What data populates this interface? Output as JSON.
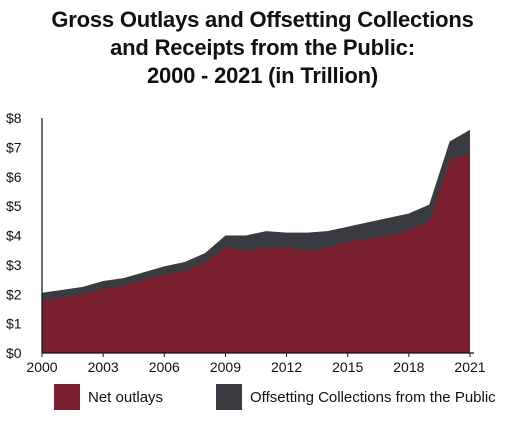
{
  "title": {
    "line1": "Gross Outlays and Offsetting Collections",
    "line2": "and Receipts from the Public:",
    "line3": "2000 - 2021 (in Trillion)"
  },
  "colors": {
    "net_outlays": "#7a1f2e",
    "offsetting": "#3a3b40",
    "axis": "#111111"
  },
  "legend": [
    {
      "label": "Net outlays",
      "color": "#7a1f2e"
    },
    {
      "label": "Offsetting Collections from the Public",
      "color": "#3a3b40"
    }
  ],
  "chart_data": {
    "type": "area",
    "stacked": true,
    "title": "Gross Outlays and Offsetting Collections and Receipts from the Public: 2000 - 2021 (in Trillion)",
    "x": [
      2000,
      2001,
      2002,
      2003,
      2004,
      2005,
      2006,
      2007,
      2008,
      2009,
      2010,
      2011,
      2012,
      2013,
      2014,
      2015,
      2016,
      2017,
      2018,
      2019,
      2020,
      2021
    ],
    "series": [
      {
        "name": "Net outlays",
        "values": [
          1.8,
          1.9,
          2.0,
          2.2,
          2.3,
          2.5,
          2.7,
          2.8,
          3.1,
          3.6,
          3.5,
          3.6,
          3.6,
          3.5,
          3.6,
          3.8,
          3.9,
          4.0,
          4.2,
          4.5,
          6.6,
          6.8
        ]
      },
      {
        "name": "Offsetting Collections from the Public",
        "values": [
          0.25,
          0.25,
          0.25,
          0.25,
          0.25,
          0.25,
          0.25,
          0.3,
          0.3,
          0.4,
          0.5,
          0.55,
          0.5,
          0.6,
          0.55,
          0.5,
          0.55,
          0.6,
          0.55,
          0.55,
          0.6,
          0.8
        ]
      }
    ],
    "xticks": [
      "2000",
      "2003",
      "2006",
      "2009",
      "2012",
      "2015",
      "2018",
      "2021"
    ],
    "yticks": [
      "$0",
      "$1",
      "$2",
      "$3",
      "$4",
      "$5",
      "$6",
      "$7",
      "$8"
    ],
    "xlim": [
      2000,
      2021
    ],
    "ylim": [
      0,
      8
    ],
    "grid": false,
    "legend_position": "bottom"
  }
}
